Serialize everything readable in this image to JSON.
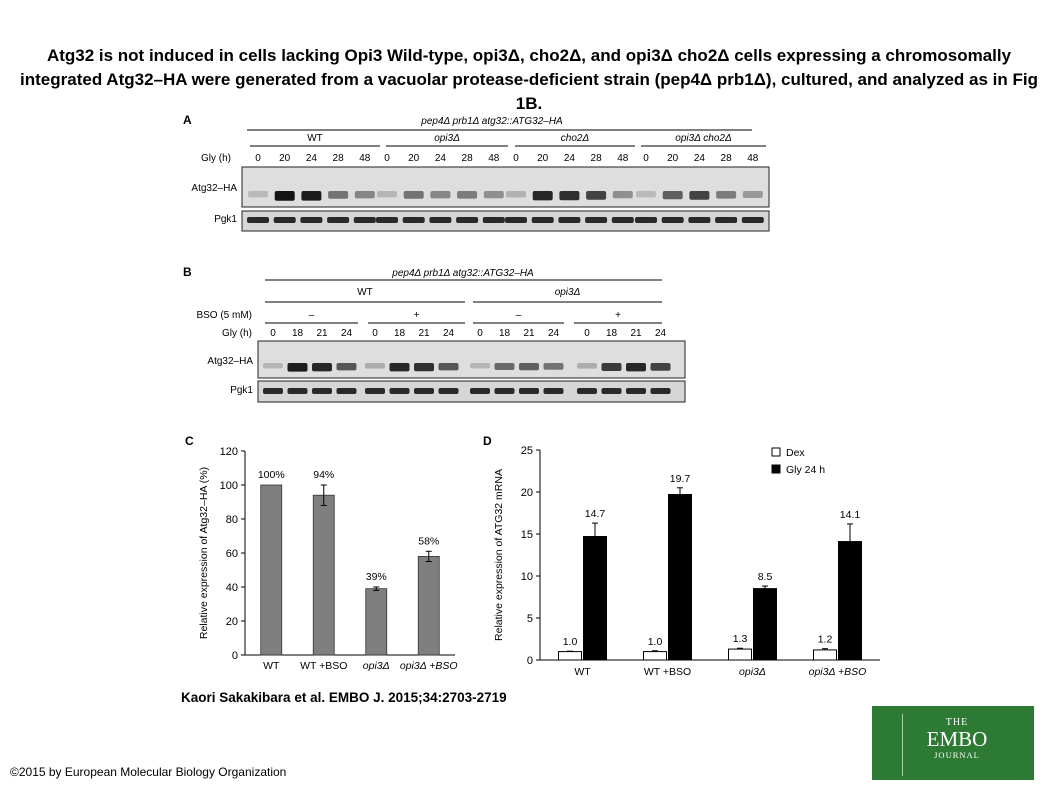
{
  "title": "Atg32 is not induced in cells lacking Opi3 Wild-type, opi3Δ, cho2Δ, and opi3Δ cho2Δ cells expressing a chromosomally integrated Atg32–HA were generated from a vacuolar protease-deficient strain (pep4Δ prb1Δ), cultured, and analyzed as in Fig 1B.",
  "citation": "Kaori Sakakibara et al. EMBO J. 2015;34:2703-2719",
  "copyright": "©2015 by European Molecular Biology Organization",
  "logo": {
    "line1": "THE",
    "line2": "EMBO",
    "line3": "JOURNAL"
  },
  "panel_a": {
    "label": "A",
    "strain": "pep4Δ prb1Δ atg32::ATG32–HA",
    "groups": [
      "WT",
      "opi3Δ",
      "cho2Δ",
      "opi3Δ cho2Δ"
    ],
    "row_label": "Gly (h)",
    "timepoints": [
      "0",
      "20",
      "24",
      "28",
      "48"
    ],
    "blots": [
      "Atg32–HA",
      "Pgk1"
    ]
  },
  "panel_b": {
    "label": "B",
    "strain": "pep4Δ prb1Δ atg32::ATG32–HA",
    "groups": [
      "WT",
      "opi3Δ"
    ],
    "bso_label": "BSO (5 mM)",
    "bso_states": [
      "–",
      "+",
      "–",
      "+"
    ],
    "row_label": "Gly (h)",
    "timepoints": [
      "0",
      "18",
      "21",
      "24"
    ],
    "blots": [
      "Atg32–HA",
      "Pgk1"
    ]
  },
  "chart_data": [
    {
      "panel": "C",
      "type": "bar",
      "categories": [
        "WT",
        "WT +BSO",
        "opi3Δ",
        "opi3Δ +BSO"
      ],
      "values": [
        100,
        94,
        39,
        58
      ],
      "errors": [
        0,
        6,
        1,
        3
      ],
      "data_labels": [
        "100%",
        "94%",
        "39%",
        "58%"
      ],
      "ylabel": "Relative expression of  Atg32–HA (%)",
      "ylim": [
        0,
        120
      ],
      "yticks": [
        "0",
        "20",
        "40",
        "60",
        "80",
        "100",
        "120"
      ],
      "bar_color": "#7f7f7f"
    },
    {
      "panel": "D",
      "type": "bar",
      "categories": [
        "WT",
        "WT +BSO",
        "opi3Δ",
        "opi3Δ +BSO"
      ],
      "series": [
        {
          "name": "Dex",
          "values": [
            1.0,
            1.0,
            1.3,
            1.2
          ],
          "errors": [
            0.05,
            0.1,
            0.1,
            0.15
          ],
          "data_labels": [
            "1.0",
            "1.0",
            "1.3",
            "1.2"
          ],
          "color": "#ffffff"
        },
        {
          "name": "Gly 24 h",
          "values": [
            14.7,
            19.7,
            8.5,
            14.1
          ],
          "errors": [
            1.6,
            0.8,
            0.3,
            2.1
          ],
          "data_labels": [
            "14.7",
            "19.7",
            "8.5",
            "14.1"
          ],
          "color": "#000000"
        }
      ],
      "ylabel": "Relative expression of ATG32 mRNA",
      "ylim": [
        0,
        25
      ],
      "yticks": [
        "0",
        "5",
        "10",
        "15",
        "20",
        "25"
      ],
      "legend": "top-right"
    }
  ]
}
